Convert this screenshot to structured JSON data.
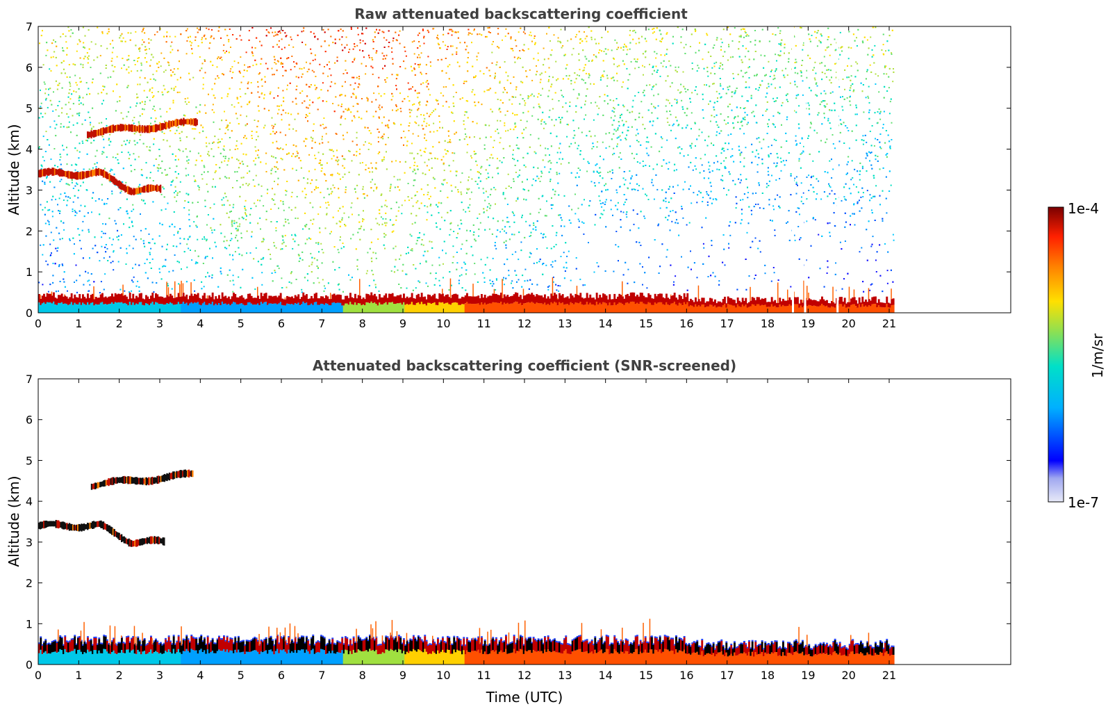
{
  "chart_data": [
    {
      "type": "heatmap",
      "title": "Raw attenuated backscattering coefficient",
      "xlabel": "",
      "ylabel": "Altitude (km)",
      "xlim": [
        0,
        24
      ],
      "ylim": [
        0,
        7
      ],
      "x_ticks": [
        0,
        1,
        2,
        3,
        4,
        5,
        6,
        7,
        8,
        9,
        10,
        11,
        12,
        13,
        14,
        15,
        16,
        17,
        18,
        19,
        20,
        21
      ],
      "y_ticks": [
        0,
        1,
        2,
        3,
        4,
        5,
        6,
        7
      ],
      "data_end_time_utc": 21.1,
      "layers": [
        {
          "name": "boundary-layer",
          "time": [
            0,
            21.1
          ],
          "altitude_km": [
            0,
            0.5
          ]
        },
        {
          "name": "cloud-layer-1",
          "time": [
            0,
            3.0
          ],
          "altitude_km": [
            2.9,
            3.5
          ]
        },
        {
          "name": "cloud-layer-2",
          "time": [
            1.2,
            3.9
          ],
          "altitude_km": [
            4.2,
            4.7
          ]
        }
      ],
      "noise_region": {
        "time": [
          0,
          21.1
        ],
        "altitude_km": [
          0.5,
          7
        ]
      },
      "gaps_utc": [
        18.6,
        18.9,
        19.7
      ]
    },
    {
      "type": "heatmap",
      "title": "Attenuated backscattering coefficient (SNR-screened)",
      "xlabel": "Time (UTC)",
      "ylabel": "Altitude (km)",
      "xlim": [
        0,
        24
      ],
      "ylim": [
        0,
        7
      ],
      "x_ticks": [
        0,
        1,
        2,
        3,
        4,
        5,
        6,
        7,
        8,
        9,
        10,
        11,
        12,
        13,
        14,
        15,
        16,
        17,
        18,
        19,
        20,
        21
      ],
      "y_ticks": [
        0,
        1,
        2,
        3,
        4,
        5,
        6,
        7
      ],
      "data_end_time_utc": 21.1,
      "layers": [
        {
          "name": "boundary-layer",
          "time": [
            0,
            21.1
          ],
          "altitude_km": [
            0,
            0.7
          ]
        },
        {
          "name": "cloud-layer-1",
          "time": [
            0,
            3.1
          ],
          "altitude_km": [
            2.9,
            3.5
          ]
        },
        {
          "name": "cloud-layer-2",
          "time": [
            1.3,
            3.8
          ],
          "altitude_km": [
            4.2,
            4.7
          ]
        }
      ]
    }
  ],
  "colorbar": {
    "label": "1/m/sr",
    "max_label": "1e-4",
    "min_label": "1e-7",
    "scale": "log",
    "range": [
      1e-07,
      0.0001
    ],
    "colormap": "jet",
    "colors": [
      "#e6e8f8",
      "#0000ff",
      "#00aaff",
      "#00e0d0",
      "#9be24a",
      "#ffe000",
      "#ff8000",
      "#ff2000",
      "#800000"
    ]
  }
}
